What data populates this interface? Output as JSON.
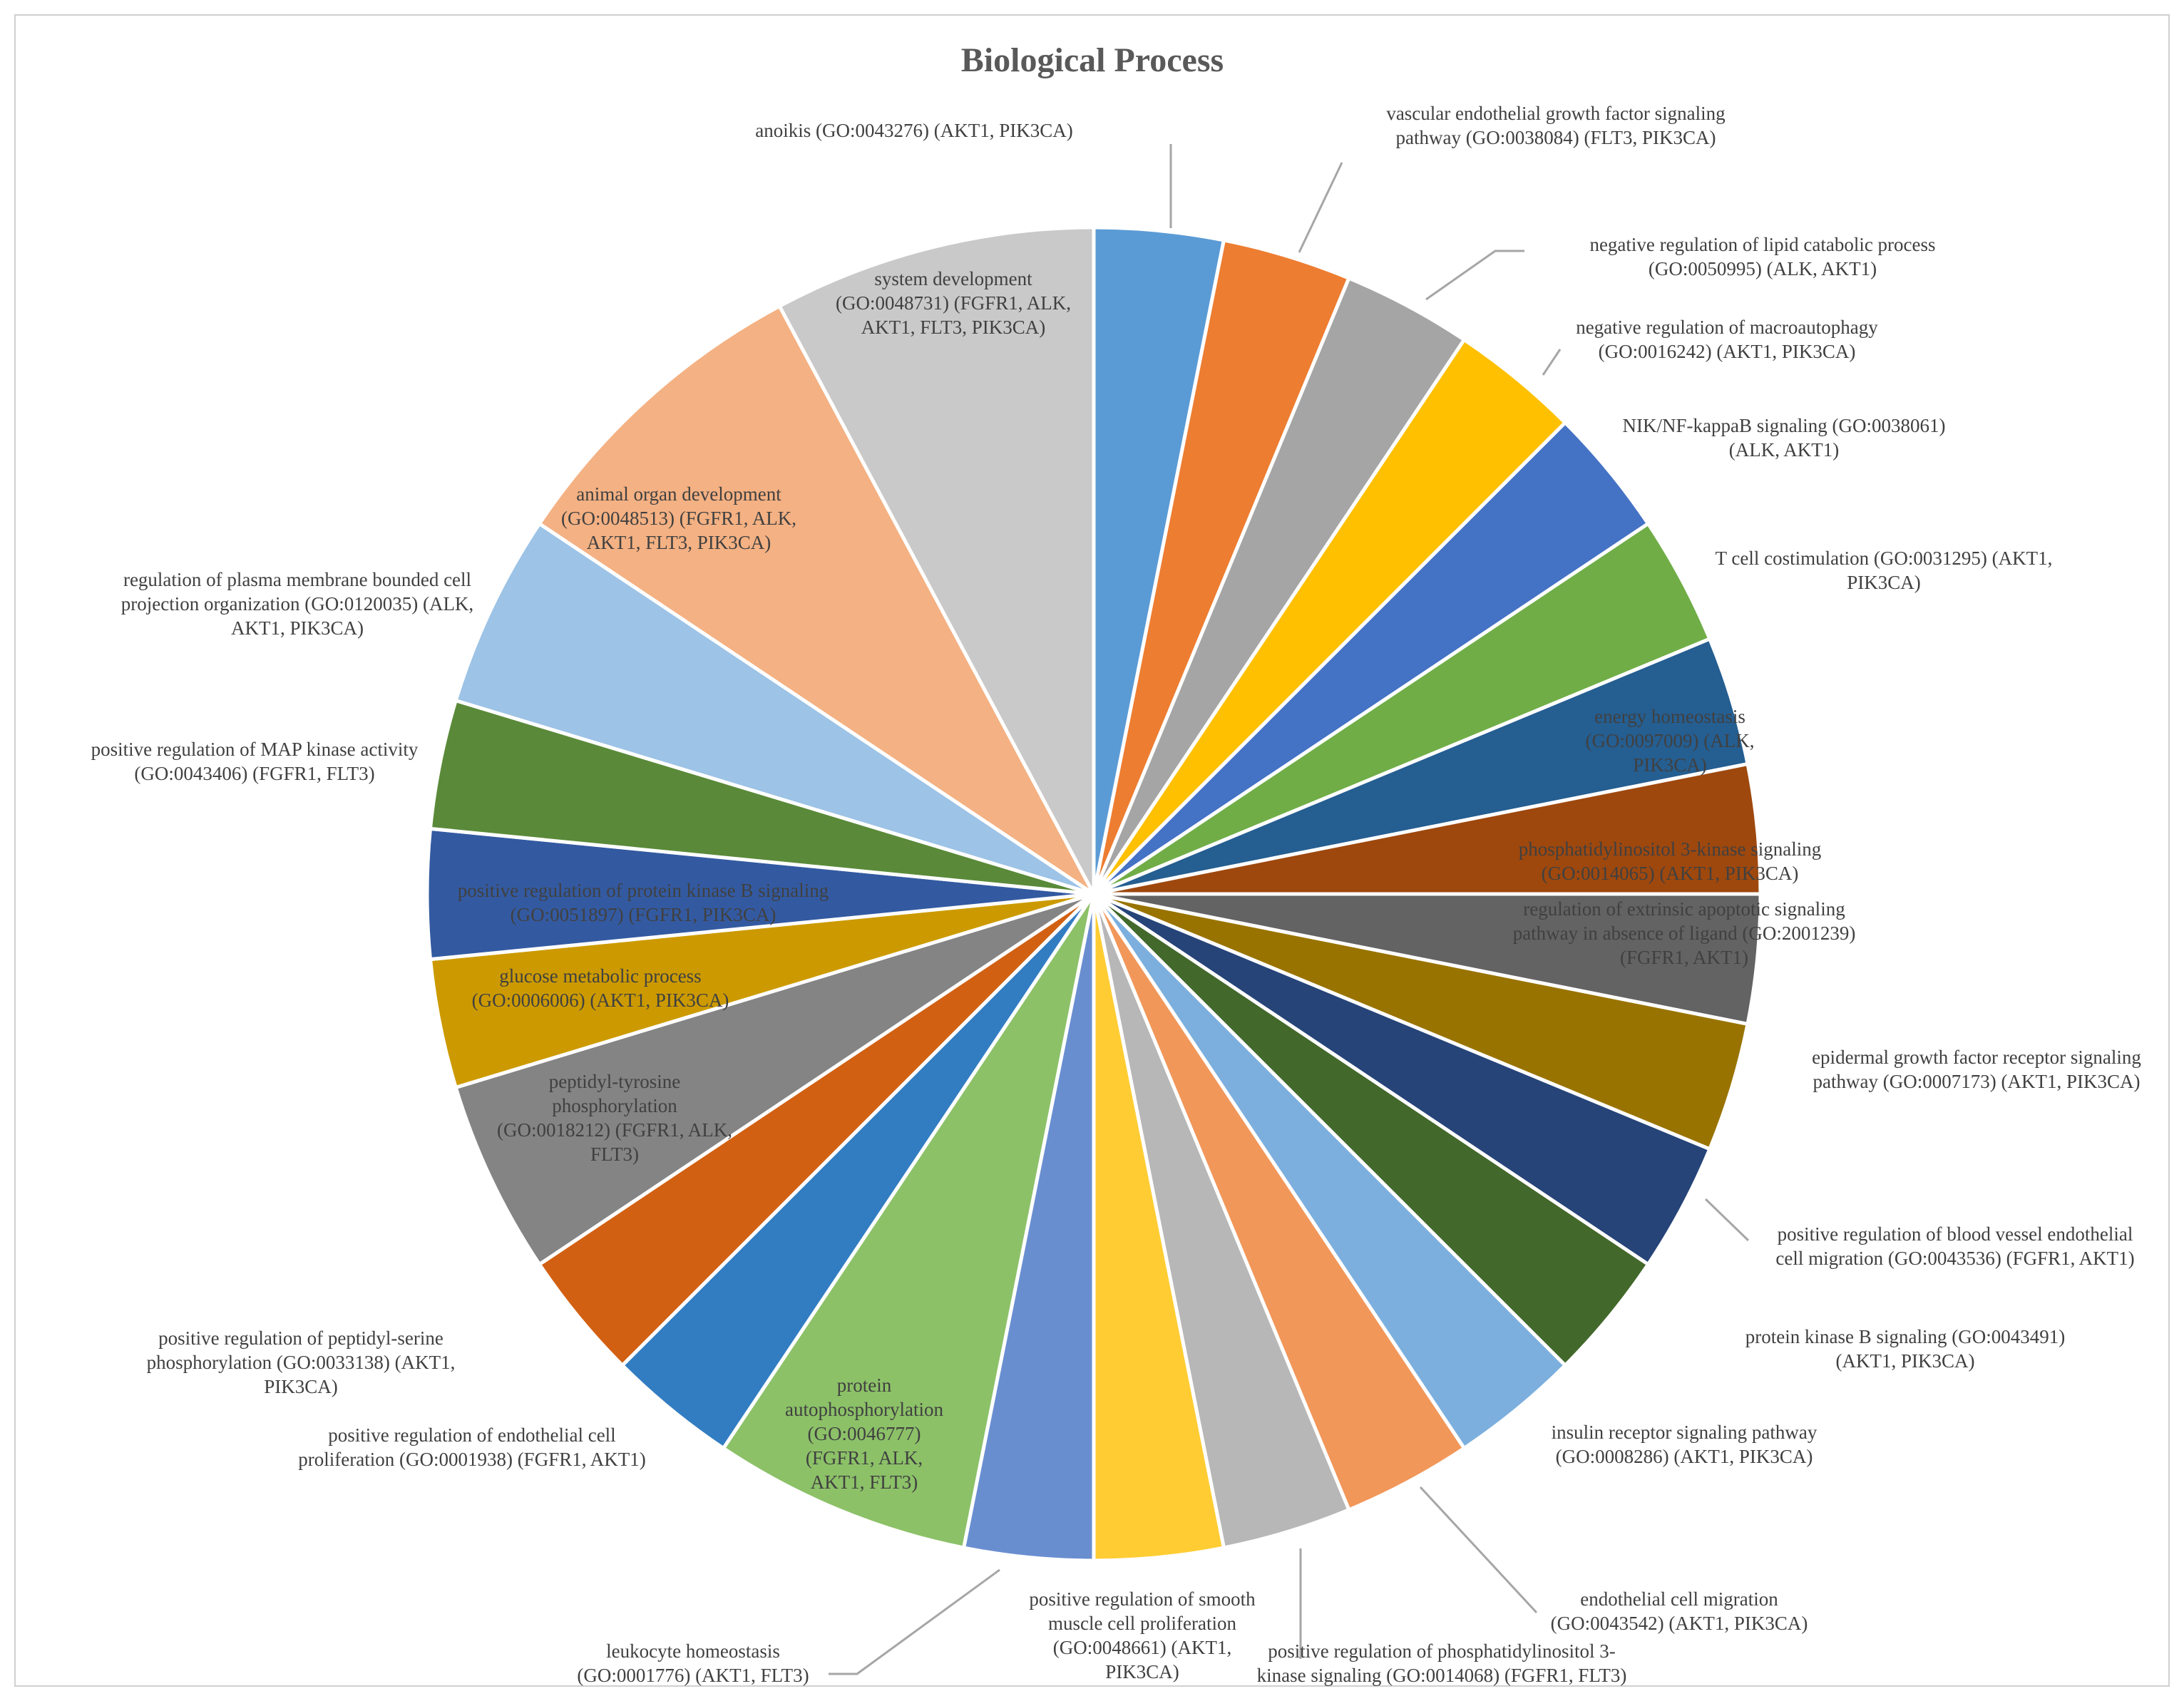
{
  "chart_data": {
    "type": "pie",
    "title": "Biological Process",
    "start": "12 o'clock",
    "direction": "clockwise",
    "slices": [
      {
        "label": "anoikis (GO:0043276) (AKT1, PIK3CA)",
        "value": 2,
        "color": "#5B9BD5"
      },
      {
        "label": "vascular endothelial growth factor signaling pathway  (GO:0038084) (FLT3, PIK3CA)",
        "value": 2,
        "color": "#ED7D31"
      },
      {
        "label": "negative regulation of lipid catabolic process (GO:0050995) (ALK, AKT1)",
        "value": 2,
        "color": "#A5A5A5"
      },
      {
        "label": "negative regulation of macroautophagy (GO:0016242) (AKT1, PIK3CA)",
        "value": 2,
        "color": "#FFC000"
      },
      {
        "label": "NIK/NF-kappaB  signaling (GO:0038061) (ALK, AKT1)",
        "value": 2,
        "color": "#4472C4"
      },
      {
        "label": "T cell costimulation (GO:0031295) (AKT1, PIK3CA)",
        "value": 2,
        "color": "#70AD47"
      },
      {
        "label": "energy homeostasis (GO:0097009) (ALK, PIK3CA)",
        "value": 2,
        "color": "#255E91"
      },
      {
        "label": "phosphatidylinositol 3-kinase signaling (GO:0014065) (AKT1, PIK3CA)",
        "value": 2,
        "color": "#9E480E"
      },
      {
        "label": "regulation of extrinsic apoptotic signaling pathway  in absence of ligand (GO:2001239) (FGFR1, AKT1)",
        "value": 2,
        "color": "#636363"
      },
      {
        "label": "epidermal growth factor receptor signaling pathway  (GO:0007173) (AKT1, PIK3CA)",
        "value": 2,
        "color": "#997300"
      },
      {
        "label": "positive regulation of blood vessel endothelial cell migration (GO:0043536) (FGFR1, AKT1)",
        "value": 2,
        "color": "#264478"
      },
      {
        "label": "protein kinase B signaling  (GO:0043491) (AKT1, PIK3CA)",
        "value": 2,
        "color": "#43682B"
      },
      {
        "label": "insulin receptor signaling pathway (GO:0008286) (AKT1, PIK3CA)",
        "value": 2,
        "color": "#7CAFDD"
      },
      {
        "label": "endothelial cell migration (GO:0043542) (AKT1, PIK3CA)",
        "value": 2,
        "color": "#F1975A"
      },
      {
        "label": "positive regulation of phosphatidylinositol 3-kinase signaling (GO:0014068) (FGFR1, FLT3)",
        "value": 2,
        "color": "#B7B7B7"
      },
      {
        "label": "positive regulation of smooth muscle cell proliferation (GO:0048661) (AKT1, PIK3CA)",
        "value": 2,
        "color": "#FFCD33"
      },
      {
        "label": "leukocyte homeostasis (GO:0001776) (AKT1, FLT3)",
        "value": 2,
        "color": "#698ED0"
      },
      {
        "label": "protein autophosphorylation (GO:0046777) (FGFR1, ALK, AKT1, FLT3)",
        "value": 4,
        "color": "#8CC168"
      },
      {
        "label": "positive regulation of endothelial cell proliferation (GO:0001938) (FGFR1, AKT1)",
        "value": 2,
        "color": "#327DC2"
      },
      {
        "label": "positive regulation of peptidyl-serine phosphorylation (GO:0033138) (AKT1, PIK3CA)",
        "value": 2,
        "color": "#D26012"
      },
      {
        "label": "peptidyl-tyrosine phosphorylation (GO:0018212) (FGFR1, ALK, FLT3)",
        "value": 3,
        "color": "#848484"
      },
      {
        "label": "glucose metabolic process (GO:0006006) (AKT1, PIK3CA)",
        "value": 2,
        "color": "#CC9A00"
      },
      {
        "label": "positive regulation of protein kinase B signaling (GO:0051897) (FGFR1, PIK3CA)",
        "value": 2,
        "color": "#335AA1"
      },
      {
        "label": "positive regulation of MAP kinase activity (GO:0043406) (FGFR1, FLT3)",
        "value": 2,
        "color": "#5A8A39"
      },
      {
        "label": "regulation of plasma membrane bounded cell projection organization (GO:0120035) (ALK, AKT1, PIK3CA)",
        "value": 3,
        "color": "#9DC3E6"
      },
      {
        "label": "animal organ development (GO:0048513) (FGFR1, ALK, AKT1, FLT3, PIK3CA)",
        "value": 5,
        "color": "#F4B183"
      },
      {
        "label": "system development (GO:0048731) (FGFR1, ALK, AKT1, FLT3, PIK3CA)",
        "value": 5,
        "color": "#C9C9C9"
      }
    ],
    "label_lines": [
      [
        "anoikis (GO:0043276) (AKT1, PIK3CA)"
      ],
      [
        "vascular endothelial growth factor signaling",
        "pathway  (GO:0038084) (FLT3, PIK3CA)"
      ],
      [
        "negative regulation of lipid catabolic process",
        "(GO:0050995) (ALK, AKT1)"
      ],
      [
        "negative regulation of macroautophagy",
        "(GO:0016242) (AKT1, PIK3CA)"
      ],
      [
        "NIK/NF-kappaB  signaling (GO:0038061)",
        "(ALK, AKT1)"
      ],
      [
        "T cell costimulation (GO:0031295) (AKT1,",
        "PIK3CA)"
      ],
      [
        "energy homeostasis",
        "(GO:0097009) (ALK,",
        "PIK3CA)"
      ],
      [
        "phosphatidylinositol 3-kinase signaling",
        "(GO:0014065) (AKT1, PIK3CA)"
      ],
      [
        "regulation of extrinsic apoptotic signaling",
        "pathway  in absence of ligand (GO:2001239)",
        "(FGFR1, AKT1)"
      ],
      [
        "epidermal growth factor receptor signaling",
        "pathway  (GO:0007173) (AKT1, PIK3CA)"
      ],
      [
        "positive regulation of blood vessel endothelial",
        "cell migration (GO:0043536) (FGFR1, AKT1)"
      ],
      [
        "protein kinase B signaling  (GO:0043491)",
        "(AKT1, PIK3CA)"
      ],
      [
        "insulin receptor signaling pathway",
        "(GO:0008286) (AKT1, PIK3CA)"
      ],
      [
        "endothelial cell migration",
        "(GO:0043542) (AKT1, PIK3CA)"
      ],
      [
        "positive regulation of phosphatidylinositol 3-",
        "kinase signaling (GO:0014068) (FGFR1, FLT3)"
      ],
      [
        "positive regulation of smooth",
        "muscle cell proliferation",
        "(GO:0048661) (AKT1,",
        "PIK3CA)"
      ],
      [
        "leukocyte homeostasis",
        "(GO:0001776) (AKT1, FLT3)"
      ],
      [
        "protein",
        "autophosphorylation",
        "(GO:0046777)",
        "(FGFR1, ALK,",
        "AKT1, FLT3)"
      ],
      [
        "positive regulation of endothelial cell",
        "proliferation (GO:0001938) (FGFR1, AKT1)"
      ],
      [
        "positive regulation of peptidyl-serine",
        "phosphorylation (GO:0033138) (AKT1,",
        "PIK3CA)"
      ],
      [
        "peptidyl-tyrosine",
        "phosphorylation",
        "(GO:0018212) (FGFR1, ALK,",
        "FLT3)"
      ],
      [
        "glucose metabolic process",
        "(GO:0006006) (AKT1, PIK3CA)"
      ],
      [
        "positive regulation of protein kinase B signaling",
        "(GO:0051897) (FGFR1, PIK3CA)"
      ],
      [
        "positive regulation of MAP kinase activity",
        "(GO:0043406) (FGFR1, FLT3)"
      ],
      [
        "regulation of plasma membrane bounded cell",
        "projection organization (GO:0120035) (ALK,",
        "AKT1, PIK3CA)"
      ],
      [
        "animal organ development",
        "(GO:0048513) (FGFR1, ALK,",
        "AKT1, FLT3, PIK3CA)"
      ],
      [
        "system development",
        "(GO:0048731) (FGFR1, ALK,",
        "AKT1, FLT3, PIK3CA)"
      ]
    ]
  }
}
